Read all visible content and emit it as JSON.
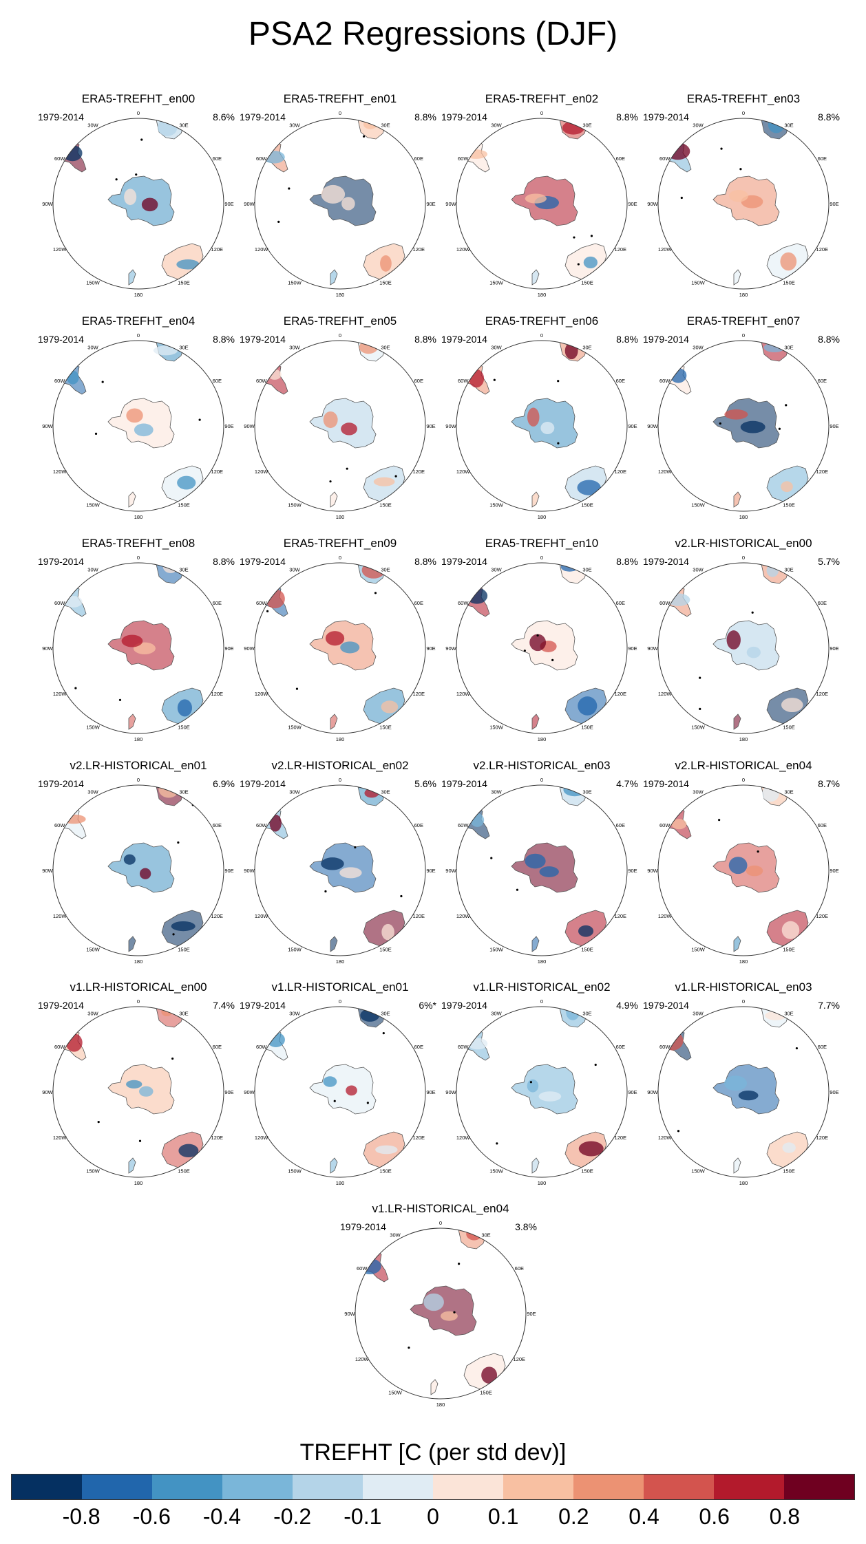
{
  "title": "PSA2 Regressions (DJF)",
  "chart_data": {
    "type": "heatmap",
    "title": "PSA2 Regressions (DJF)",
    "variable_label": "TREFHT [C (per std dev)]",
    "projection": "south-polar stereographic",
    "longitude_labels": [
      "0",
      "30E",
      "60E",
      "90E",
      "120E",
      "150E",
      "180",
      "150W",
      "120W",
      "90W",
      "60W",
      "30W"
    ],
    "panels": [
      {
        "name": "ERA5-TREFHT_en00",
        "period": "1979-2014",
        "variance": "8.6%"
      },
      {
        "name": "ERA5-TREFHT_en01",
        "period": "1979-2014",
        "variance": "8.8%"
      },
      {
        "name": "ERA5-TREFHT_en02",
        "period": "1979-2014",
        "variance": "8.8%"
      },
      {
        "name": "ERA5-TREFHT_en03",
        "period": "1979-2014",
        "variance": "8.8%"
      },
      {
        "name": "ERA5-TREFHT_en04",
        "period": "1979-2014",
        "variance": "8.8%"
      },
      {
        "name": "ERA5-TREFHT_en05",
        "period": "1979-2014",
        "variance": "8.8%"
      },
      {
        "name": "ERA5-TREFHT_en06",
        "period": "1979-2014",
        "variance": "8.8%"
      },
      {
        "name": "ERA5-TREFHT_en07",
        "period": "1979-2014",
        "variance": "8.8%"
      },
      {
        "name": "ERA5-TREFHT_en08",
        "period": "1979-2014",
        "variance": "8.8%"
      },
      {
        "name": "ERA5-TREFHT_en09",
        "period": "1979-2014",
        "variance": "8.8%"
      },
      {
        "name": "ERA5-TREFHT_en10",
        "period": "1979-2014",
        "variance": "8.8%"
      },
      {
        "name": "v2.LR-HISTORICAL_en00",
        "period": "1979-2014",
        "variance": "5.7%"
      },
      {
        "name": "v2.LR-HISTORICAL_en01",
        "period": "1979-2014",
        "variance": "6.9%"
      },
      {
        "name": "v2.LR-HISTORICAL_en02",
        "period": "1979-2014",
        "variance": "5.6%"
      },
      {
        "name": "v2.LR-HISTORICAL_en03",
        "period": "1979-2014",
        "variance": "4.7%"
      },
      {
        "name": "v2.LR-HISTORICAL_en04",
        "period": "1979-2014",
        "variance": "8.7%"
      },
      {
        "name": "v1.LR-HISTORICAL_en00",
        "period": "1979-2014",
        "variance": "7.4%"
      },
      {
        "name": "v1.LR-HISTORICAL_en01",
        "period": "1979-2014",
        "variance": "6%*"
      },
      {
        "name": "v1.LR-HISTORICAL_en02",
        "period": "1979-2014",
        "variance": "4.9%"
      },
      {
        "name": "v1.LR-HISTORICAL_en03",
        "period": "1979-2014",
        "variance": "7.7%"
      },
      {
        "name": "v1.LR-HISTORICAL_en04",
        "period": "1979-2014",
        "variance": "3.8%"
      }
    ],
    "colorbar": {
      "ticks": [
        "-0.8",
        "-0.6",
        "-0.4",
        "-0.2",
        "-0.1",
        "0",
        "0.1",
        "0.2",
        "0.4",
        "0.6",
        "0.8"
      ],
      "colors": [
        "#053061",
        "#2166ac",
        "#4393c3",
        "#7ab6d9",
        "#b4d4e8",
        "#e0ecf4",
        "#fbe4d8",
        "#f8c0a2",
        "#ec9273",
        "#d3544e",
        "#b31a2c",
        "#6f0020"
      ]
    }
  }
}
